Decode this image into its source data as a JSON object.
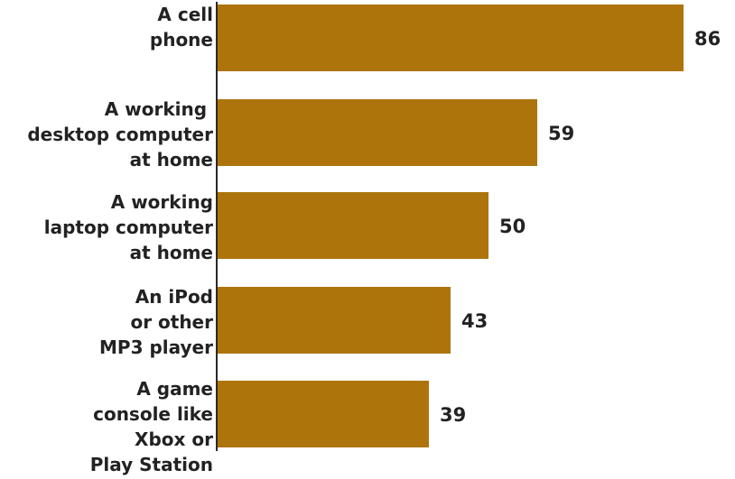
{
  "chart_data": {
    "type": "bar",
    "orientation": "horizontal",
    "categories": [
      [
        "A cell",
        "phone"
      ],
      [
        "A working ",
        "desktop computer",
        "at home"
      ],
      [
        "A working",
        "laptop computer",
        "at home"
      ],
      [
        "An iPod",
        "or other",
        "MP3 player"
      ],
      [
        "A game",
        "console like",
        "Xbox or",
        "Play Station"
      ]
    ],
    "values": [
      86,
      59,
      50,
      43,
      39
    ],
    "value_labels": [
      "86",
      "59",
      "50",
      "43",
      "39"
    ],
    "bar_color": "#ad740c",
    "axis_color": "#2a2a2a",
    "text_color": "#222222",
    "xlim": [
      0,
      100
    ],
    "grid": false,
    "legend": "none"
  }
}
